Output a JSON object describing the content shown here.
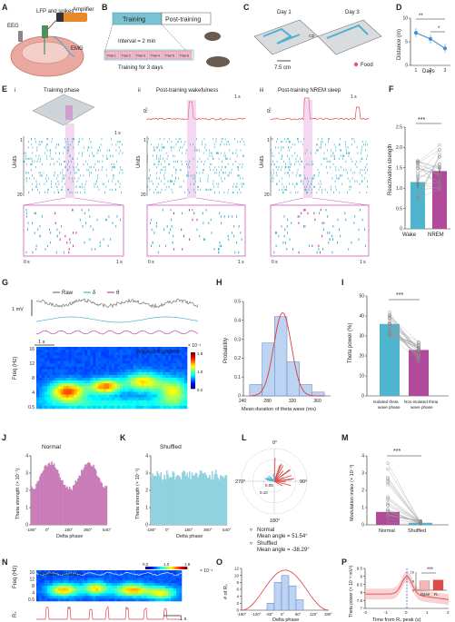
{
  "panel_labels": [
    "A",
    "B",
    "C",
    "D",
    "E",
    "F",
    "G",
    "H",
    "I",
    "J",
    "K",
    "L",
    "M",
    "N",
    "O",
    "P"
  ],
  "panel_a": {
    "eeg": "EEG",
    "lfp": "LFP and spikes",
    "amplifier": "Amplifier",
    "emg": "EMG"
  },
  "panel_b": {
    "training": "Training",
    "post_training": "Post-training",
    "interval": "Interval = 2 min",
    "trials": [
      "Trial 1",
      "Trial 2",
      "Trial 3",
      "Trial 4",
      "Trial 5",
      "Trial 6"
    ],
    "days": "Training for 3 days"
  },
  "panel_c": {
    "day1": "Day 1",
    "day3": "Day 3",
    "scale": "7.5 cm",
    "food": "Food"
  },
  "panel_d": {
    "sig1": "**",
    "sig2": "*",
    "xlabel": "Days",
    "ylabel": "Distance (m)"
  },
  "panel_e": {
    "sub_i": "i",
    "sub_ii": "ii",
    "sub_iii": "iii",
    "title_i": "Training phase",
    "title_ii": "Post-training wakefulness",
    "title_iii": "Post-training NREM sleep",
    "scale_1s": "1 s",
    "units": "Units",
    "rs": "Rₛ",
    "t0": "0 s",
    "t1": "1 s",
    "u1": "1",
    "u20": "20"
  },
  "panel_f": {
    "sig": "***",
    "ylabel": "Reactivation strength",
    "wake": "Wake",
    "nrem": "NREM"
  },
  "panel_g": {
    "raw": "Raw",
    "delta": "δ",
    "theta": "θ",
    "mv": "1 mV",
    "scale": "1 s",
    "wavelet": "Wavelet transform",
    "scale_max": "× 10⁻¹",
    "ylabel": "Freq (Hz)",
    "yticks": [
      "16",
      "12",
      "8",
      "4",
      "0.5"
    ],
    "cbar_ticks": [
      "1.8",
      "1.0",
      "0.2"
    ]
  },
  "panel_j": {
    "title": "Normal",
    "ylabel": "Theta strength (× 10⁻¹)",
    "xlabel": "Delta phase"
  },
  "panel_k": {
    "title": "Shuffled",
    "ylabel": "Theta strength (× 10⁻¹)",
    "xlabel": "Delta phase"
  },
  "panel_l": {
    "a0": "0°",
    "a90": "90°",
    "a180": "180°",
    "a270": "270°",
    "r1": "0.10",
    "r2": "0.05",
    "normal": "Normal",
    "normal_mean": "Mean angle = 51.54°",
    "shuffled": "Shuffled",
    "shuffled_mean": "Mean angle = -38.29°"
  },
  "panel_m": {
    "sig": "***",
    "ylabel": "Modulation index (× 10⁻³)",
    "normal": "Normal",
    "shuffled": "Shuffled"
  },
  "panel_n": {
    "wavelet": "Wavelet transform",
    "ylabel": "Freq (Hz)",
    "rs": "Rₛ",
    "scale": "1 s",
    "yticks": [
      "16",
      "12",
      "8",
      "4",
      "0.5"
    ],
    "cbar_ticks": [
      "1.8",
      "1.0",
      "0.2"
    ],
    "scale_exp": "× 10⁻¹",
    "mv": "1 mV"
  },
  "panel_o": {
    "ylabel": "# of Rₛ",
    "xlabel": "Delta phase"
  },
  "panel_p": {
    "sig": "***",
    "ylabel": "Theta power (× 10⁻³ mV²)",
    "xlabel": "Time from Rₛ peak (s)",
    "inset": [
      "Base",
      "Rₛ"
    ]
  },
  "chart_data": [
    {
      "id": "D",
      "type": "line",
      "x": [
        1,
        2,
        3
      ],
      "values": [
        6.9,
        5.6,
        3.6
      ],
      "xlabel": "Days",
      "ylabel": "Distance (m)",
      "ylim": [
        0,
        10
      ],
      "yticks": [
        0,
        5,
        10
      ],
      "xticks": [
        "1",
        "2",
        "3"
      ]
    },
    {
      "id": "F",
      "type": "bar",
      "categories": [
        "Wake",
        "NREM"
      ],
      "values": [
        1.15,
        1.42
      ],
      "ylabel": "Reactivation strength",
      "ylim": [
        0,
        2.5
      ],
      "yticks": [
        "0",
        "0.5",
        "1.0",
        "1.5",
        "2.0",
        "2.5"
      ]
    },
    {
      "id": "H",
      "type": "bar",
      "categories": [
        260,
        280,
        300,
        320,
        340,
        360,
        380
      ],
      "values": [
        0.06,
        0.28,
        0.42,
        0.18,
        0.06,
        0.02,
        0.0
      ],
      "xlabel": "Mean duration of theta wave (ms)",
      "ylabel": "Probability",
      "ylim": [
        0,
        0.5
      ],
      "yticks": [
        "0",
        "0.1",
        "0.2",
        "0.3",
        "0.4",
        "0.5"
      ],
      "xticks": [
        "240",
        "280",
        "320",
        "360"
      ]
    },
    {
      "id": "I",
      "type": "bar",
      "categories": [
        "Isolated theta wave phase",
        "Non-isolated theta wave phase"
      ],
      "values": [
        36,
        23
      ],
      "ylabel": "Theta power (%)",
      "ylim": [
        0,
        50
      ],
      "yticks": [
        "0",
        "10",
        "20",
        "30",
        "40",
        "50"
      ]
    },
    {
      "id": "J",
      "type": "area",
      "xlabel": "Delta phase",
      "ylabel": "Theta strength (× 10⁻¹)",
      "ylim": [
        0,
        4
      ],
      "yticks": [
        "0",
        "1",
        "2",
        "3",
        "4"
      ],
      "xticks": [
        "-180°",
        "0°",
        "180°",
        "360°",
        "540°"
      ],
      "peaks": [
        0,
        360
      ],
      "trough": 2.1,
      "peak": 3.6
    },
    {
      "id": "K",
      "type": "area",
      "xlabel": "Delta phase",
      "ylabel": "Theta strength (× 10⁻¹)",
      "ylim": [
        0,
        4
      ],
      "yticks": [
        "0",
        "1",
        "2",
        "3",
        "4"
      ],
      "xticks": [
        "-180°",
        "0°",
        "180°",
        "360°",
        "540°"
      ],
      "level": 2.9
    },
    {
      "id": "M",
      "type": "bar",
      "categories": [
        "Normal",
        "Shuffled"
      ],
      "values": [
        0.75,
        0.12
      ],
      "ylabel": "Modulation index (× 10⁻³)",
      "ylim": [
        0,
        4
      ],
      "yticks": [
        "0",
        "1",
        "2",
        "3",
        "4"
      ]
    },
    {
      "id": "O",
      "type": "bar",
      "categories": [
        -60,
        -30,
        0,
        30,
        60
      ],
      "values": [
        2,
        8,
        10,
        7,
        3
      ],
      "xlabel": "Delta phase",
      "ylabel": "# of Rₛ",
      "ylim": [
        0,
        12
      ],
      "yticks": [
        "0",
        "2",
        "4",
        "6",
        "8",
        "10",
        "12"
      ],
      "xticks": [
        "-180°",
        "-120°",
        "-60°",
        "0°",
        "60°",
        "120°",
        "180°"
      ]
    },
    {
      "id": "P",
      "type": "line",
      "xlabel": "Time from Rₛ peak (s)",
      "ylabel": "Theta power (× 10⁻³ mV²)",
      "ylim": [
        7,
        9.5
      ],
      "yticks": [
        "7",
        "7.5",
        "8",
        "8.5",
        "9",
        "9.5"
      ],
      "xticks": [
        "-2",
        "-1",
        "0",
        "1",
        "2"
      ],
      "x": [
        -2,
        -1.5,
        -1,
        -0.5,
        0,
        0.5,
        1,
        1.5,
        2
      ],
      "values": [
        7.9,
        8.0,
        8.2,
        8.5,
        9.0,
        8.4,
        7.9,
        7.6,
        7.5
      ],
      "inset": {
        "categories": [
          "Base",
          "Rₛ"
        ],
        "values": [
          8.2,
          9.0
        ],
        "ylim": [
          0,
          16
        ],
        "yticks": [
          "0",
          "8",
          "16"
        ]
      }
    }
  ]
}
